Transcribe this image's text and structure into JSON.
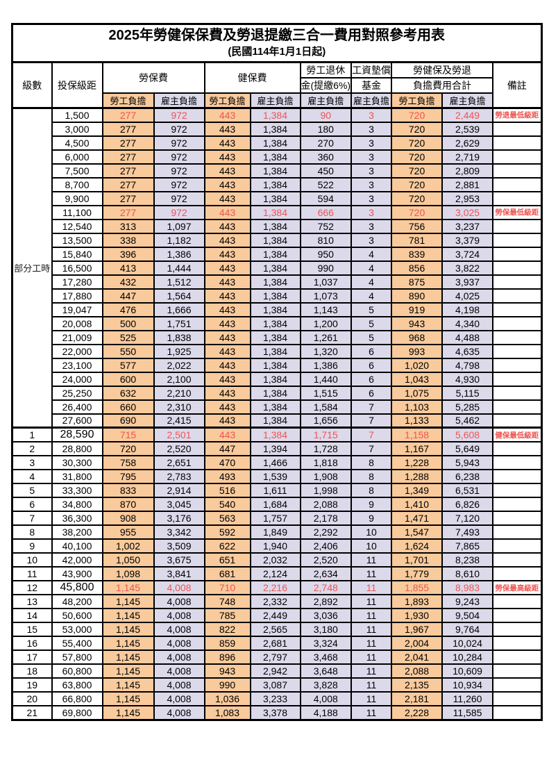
{
  "title": "2025年勞健保保費及勞退提繳三合一費用對照參考用表",
  "subtitle": "(民國114年1月1日起)",
  "left_section_label": "部分工時",
  "header": {
    "level": "級數",
    "bracket": "投保級距",
    "labor_insurance": "勞保費",
    "health_insurance": "健保費",
    "pension_line1": "勞工退休",
    "pension_line2": "金(提繳6%)",
    "wage_fund_line1": "工資墊償",
    "wage_fund_line2": "基金",
    "total_line1": "勞健保及勞退",
    "total_line2": "負擔費用合計",
    "notes": "備註",
    "employee": "勞工負擔",
    "employer": "雇主負擔"
  },
  "colors": {
    "employee_bg": "#f8ca9c",
    "employer_bg": "#dcd9eb",
    "highlight_text": "#ee5451",
    "border": "#000000"
  },
  "rows": [
    {
      "level": "",
      "bracket": "1,500",
      "values": [
        "277",
        "972",
        "443",
        "1,384",
        "90",
        "3",
        "720",
        "2,449"
      ],
      "note": "勞退最低級距",
      "red": true
    },
    {
      "level": "",
      "bracket": "3,000",
      "values": [
        "277",
        "972",
        "443",
        "1,384",
        "180",
        "3",
        "720",
        "2,539"
      ],
      "note": "",
      "red": false
    },
    {
      "level": "",
      "bracket": "4,500",
      "values": [
        "277",
        "972",
        "443",
        "1,384",
        "270",
        "3",
        "720",
        "2,629"
      ],
      "note": "",
      "red": false
    },
    {
      "level": "",
      "bracket": "6,000",
      "values": [
        "277",
        "972",
        "443",
        "1,384",
        "360",
        "3",
        "720",
        "2,719"
      ],
      "note": "",
      "red": false
    },
    {
      "level": "",
      "bracket": "7,500",
      "values": [
        "277",
        "972",
        "443",
        "1,384",
        "450",
        "3",
        "720",
        "2,809"
      ],
      "note": "",
      "red": false
    },
    {
      "level": "",
      "bracket": "8,700",
      "values": [
        "277",
        "972",
        "443",
        "1,384",
        "522",
        "3",
        "720",
        "2,881"
      ],
      "note": "",
      "red": false
    },
    {
      "level": "",
      "bracket": "9,900",
      "values": [
        "277",
        "972",
        "443",
        "1,384",
        "594",
        "3",
        "720",
        "2,953"
      ],
      "note": "",
      "red": false
    },
    {
      "level": "",
      "bracket": "11,100",
      "values": [
        "277",
        "972",
        "443",
        "1,384",
        "666",
        "3",
        "720",
        "3,025"
      ],
      "note": "勞保最低級距",
      "red": true
    },
    {
      "level": "",
      "bracket": "12,540",
      "values": [
        "313",
        "1,097",
        "443",
        "1,384",
        "752",
        "3",
        "756",
        "3,237"
      ],
      "note": "",
      "red": false
    },
    {
      "level": "",
      "bracket": "13,500",
      "values": [
        "338",
        "1,182",
        "443",
        "1,384",
        "810",
        "3",
        "781",
        "3,379"
      ],
      "note": "",
      "red": false
    },
    {
      "level": "",
      "bracket": "15,840",
      "values": [
        "396",
        "1,386",
        "443",
        "1,384",
        "950",
        "4",
        "839",
        "3,724"
      ],
      "note": "",
      "red": false
    },
    {
      "level": "",
      "bracket": "16,500",
      "values": [
        "413",
        "1,444",
        "443",
        "1,384",
        "990",
        "4",
        "856",
        "3,822"
      ],
      "note": "",
      "red": false
    },
    {
      "level": "",
      "bracket": "17,280",
      "values": [
        "432",
        "1,512",
        "443",
        "1,384",
        "1,037",
        "4",
        "875",
        "3,937"
      ],
      "note": "",
      "red": false
    },
    {
      "level": "",
      "bracket": "17,880",
      "values": [
        "447",
        "1,564",
        "443",
        "1,384",
        "1,073",
        "4",
        "890",
        "4,025"
      ],
      "note": "",
      "red": false
    },
    {
      "level": "",
      "bracket": "19,047",
      "values": [
        "476",
        "1,666",
        "443",
        "1,384",
        "1,143",
        "5",
        "919",
        "4,198"
      ],
      "note": "",
      "red": false
    },
    {
      "level": "",
      "bracket": "20,008",
      "values": [
        "500",
        "1,751",
        "443",
        "1,384",
        "1,200",
        "5",
        "943",
        "4,340"
      ],
      "note": "",
      "red": false
    },
    {
      "level": "",
      "bracket": "21,009",
      "values": [
        "525",
        "1,838",
        "443",
        "1,384",
        "1,261",
        "5",
        "968",
        "4,488"
      ],
      "note": "",
      "red": false
    },
    {
      "level": "",
      "bracket": "22,000",
      "values": [
        "550",
        "1,925",
        "443",
        "1,384",
        "1,320",
        "6",
        "993",
        "4,635"
      ],
      "note": "",
      "red": false
    },
    {
      "level": "",
      "bracket": "23,100",
      "values": [
        "577",
        "2,022",
        "443",
        "1,384",
        "1,386",
        "6",
        "1,020",
        "4,798"
      ],
      "note": "",
      "red": false
    },
    {
      "level": "",
      "bracket": "24,000",
      "values": [
        "600",
        "2,100",
        "443",
        "1,384",
        "1,440",
        "6",
        "1,043",
        "4,930"
      ],
      "note": "",
      "red": false
    },
    {
      "level": "",
      "bracket": "25,250",
      "values": [
        "632",
        "2,210",
        "443",
        "1,384",
        "1,515",
        "6",
        "1,075",
        "5,115"
      ],
      "note": "",
      "red": false
    },
    {
      "level": "",
      "bracket": "26,400",
      "values": [
        "660",
        "2,310",
        "443",
        "1,384",
        "1,584",
        "7",
        "1,103",
        "5,285"
      ],
      "note": "",
      "red": false
    },
    {
      "level": "",
      "bracket": "27,600",
      "values": [
        "690",
        "2,415",
        "443",
        "1,384",
        "1,656",
        "7",
        "1,133",
        "5,462"
      ],
      "note": "",
      "red": false
    },
    {
      "level": "1",
      "bracket": "28,590",
      "values": [
        "715",
        "2,501",
        "443",
        "1,384",
        "1,715",
        "7",
        "1,158",
        "5,608"
      ],
      "note": "健保最低級距",
      "red": true
    },
    {
      "level": "2",
      "bracket": "28,800",
      "values": [
        "720",
        "2,520",
        "447",
        "1,394",
        "1,728",
        "7",
        "1,167",
        "5,649"
      ],
      "note": "",
      "red": false
    },
    {
      "level": "3",
      "bracket": "30,300",
      "values": [
        "758",
        "2,651",
        "470",
        "1,466",
        "1,818",
        "8",
        "1,228",
        "5,943"
      ],
      "note": "",
      "red": false
    },
    {
      "level": "4",
      "bracket": "31,800",
      "values": [
        "795",
        "2,783",
        "493",
        "1,539",
        "1,908",
        "8",
        "1,288",
        "6,238"
      ],
      "note": "",
      "red": false
    },
    {
      "level": "5",
      "bracket": "33,300",
      "values": [
        "833",
        "2,914",
        "516",
        "1,611",
        "1,998",
        "8",
        "1,349",
        "6,531"
      ],
      "note": "",
      "red": false
    },
    {
      "level": "6",
      "bracket": "34,800",
      "values": [
        "870",
        "3,045",
        "540",
        "1,684",
        "2,088",
        "9",
        "1,410",
        "6,826"
      ],
      "note": "",
      "red": false
    },
    {
      "level": "7",
      "bracket": "36,300",
      "values": [
        "908",
        "3,176",
        "563",
        "1,757",
        "2,178",
        "9",
        "1,471",
        "7,120"
      ],
      "note": "",
      "red": false
    },
    {
      "level": "8",
      "bracket": "38,200",
      "values": [
        "955",
        "3,342",
        "592",
        "1,849",
        "2,292",
        "10",
        "1,547",
        "7,493"
      ],
      "note": "",
      "red": false
    },
    {
      "level": "9",
      "bracket": "40,100",
      "values": [
        "1,002",
        "3,509",
        "622",
        "1,940",
        "2,406",
        "10",
        "1,624",
        "7,865"
      ],
      "note": "",
      "red": false
    },
    {
      "level": "10",
      "bracket": "42,000",
      "values": [
        "1,050",
        "3,675",
        "651",
        "2,032",
        "2,520",
        "11",
        "1,701",
        "8,238"
      ],
      "note": "",
      "red": false
    },
    {
      "level": "11",
      "bracket": "43,900",
      "values": [
        "1,098",
        "3,841",
        "681",
        "2,124",
        "2,634",
        "11",
        "1,779",
        "8,610"
      ],
      "note": "",
      "red": false
    },
    {
      "level": "12",
      "bracket": "45,800",
      "values": [
        "1,145",
        "4,008",
        "710",
        "2,216",
        "2,748",
        "11",
        "1,855",
        "8,983"
      ],
      "note": "勞保最高級距",
      "red": true
    },
    {
      "level": "13",
      "bracket": "48,200",
      "values": [
        "1,145",
        "4,008",
        "748",
        "2,332",
        "2,892",
        "11",
        "1,893",
        "9,243"
      ],
      "note": "",
      "red": false
    },
    {
      "level": "14",
      "bracket": "50,600",
      "values": [
        "1,145",
        "4,008",
        "785",
        "2,449",
        "3,036",
        "11",
        "1,930",
        "9,504"
      ],
      "note": "",
      "red": false
    },
    {
      "level": "15",
      "bracket": "53,000",
      "values": [
        "1,145",
        "4,008",
        "822",
        "2,565",
        "3,180",
        "11",
        "1,967",
        "9,764"
      ],
      "note": "",
      "red": false
    },
    {
      "level": "16",
      "bracket": "55,400",
      "values": [
        "1,145",
        "4,008",
        "859",
        "2,681",
        "3,324",
        "11",
        "2,004",
        "10,024"
      ],
      "note": "",
      "red": false
    },
    {
      "level": "17",
      "bracket": "57,800",
      "values": [
        "1,145",
        "4,008",
        "896",
        "2,797",
        "3,468",
        "11",
        "2,041",
        "10,284"
      ],
      "note": "",
      "red": false
    },
    {
      "level": "18",
      "bracket": "60,800",
      "values": [
        "1,145",
        "4,008",
        "943",
        "2,942",
        "3,648",
        "11",
        "2,088",
        "10,609"
      ],
      "note": "",
      "red": false
    },
    {
      "level": "19",
      "bracket": "63,800",
      "values": [
        "1,145",
        "4,008",
        "990",
        "3,087",
        "3,828",
        "11",
        "2,135",
        "10,934"
      ],
      "note": "",
      "red": false
    },
    {
      "level": "20",
      "bracket": "66,800",
      "values": [
        "1,145",
        "4,008",
        "1,036",
        "3,233",
        "4,008",
        "11",
        "2,181",
        "11,260"
      ],
      "note": "",
      "red": false
    },
    {
      "level": "21",
      "bracket": "69,800",
      "values": [
        "1,145",
        "4,008",
        "1,083",
        "3,378",
        "4,188",
        "11",
        "2,228",
        "11,585"
      ],
      "note": "",
      "red": false
    }
  ]
}
